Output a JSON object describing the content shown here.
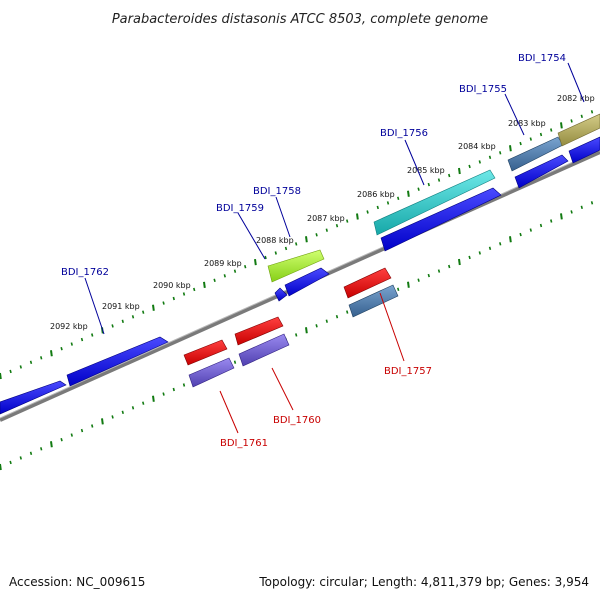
{
  "title": "Parabacteroides distasonis ATCC 8503, complete genome",
  "footer": {
    "accession": "Accession: NC_009615",
    "summary": "Topology: circular; Length: 4,811,379 bp; Genes: 3,954"
  },
  "ticks": [
    "2082 kbp",
    "2083 kbp",
    "2084 kbp",
    "2085 kbp",
    "2086 kbp",
    "2087 kbp",
    "2088 kbp",
    "2089 kbp",
    "2090 kbp",
    "2091 kbp",
    "2092 kbp"
  ],
  "gene_labels": {
    "forward": [
      "BDI_1754",
      "BDI_1755",
      "BDI_1756",
      "BDI_1758",
      "BDI_1759",
      "BDI_1762"
    ],
    "reverse": [
      "BDI_1757",
      "BDI_1760",
      "BDI_1761"
    ]
  },
  "colors": {
    "forward_label": "#00009a",
    "reverse_label": "#c80000",
    "backbone": "#7a7a7a",
    "tick": "#117a11",
    "cds_blue": "#0000e0",
    "cds_red": "#e00000",
    "cds_cyan": "#22c4c4",
    "cds_lime": "#a0ec30",
    "cds_olive": "#b0a85a",
    "cds_steel": "#4a78a8",
    "cds_violet": "#6f5bcc"
  }
}
